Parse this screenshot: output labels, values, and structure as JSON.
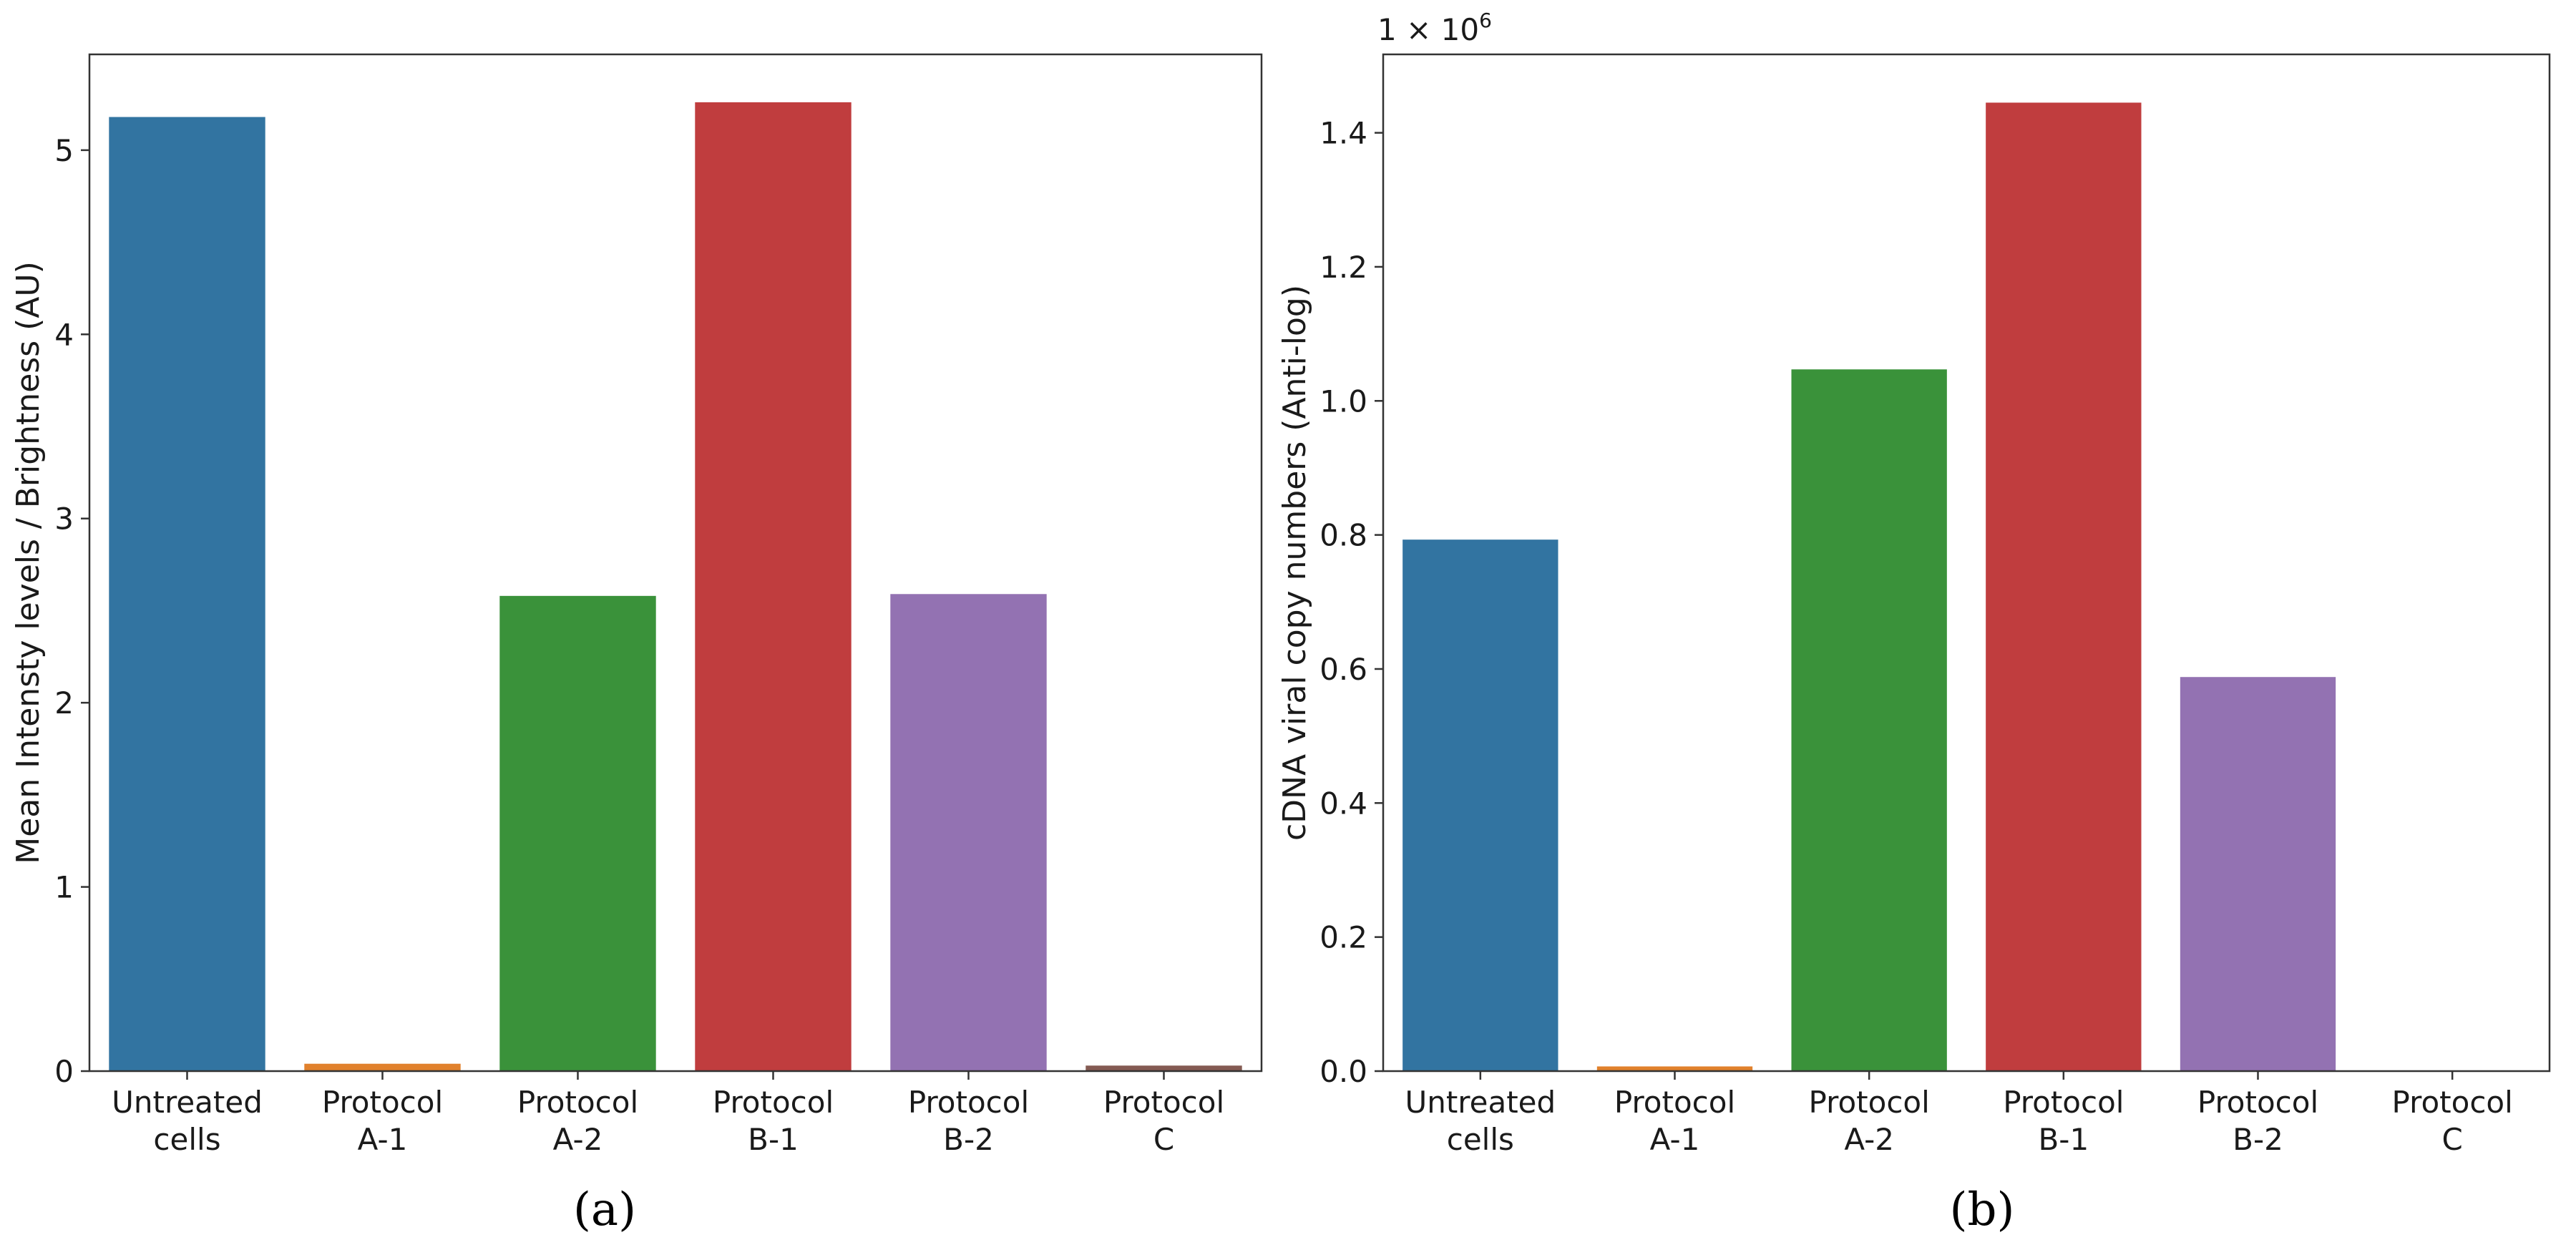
{
  "figure": {
    "label_a": "(a)",
    "label_b": "(b)"
  },
  "chart_data": [
    {
      "type": "bar",
      "panel": "a",
      "title": "",
      "xlabel": "",
      "ylabel": "Mean Intensty levels / Brightness (AU)",
      "categories": [
        [
          "Untreated",
          "cells"
        ],
        [
          "Protocol",
          "A-1"
        ],
        [
          "Protocol",
          "A-2"
        ],
        [
          "Protocol",
          "B-1"
        ],
        [
          "Protocol",
          "B-2"
        ],
        [
          "Protocol",
          "C"
        ]
      ],
      "values": [
        5.18,
        0.04,
        2.58,
        5.26,
        2.59,
        0.03
      ],
      "colors": [
        "#3274a1",
        "#e1812c",
        "#3a923a",
        "#c03d3e",
        "#9372b2",
        "#845b53"
      ],
      "ylim": [
        0,
        5.52
      ],
      "yticks": [
        0,
        1,
        2,
        3,
        4,
        5
      ],
      "ytick_labels": [
        "0",
        "1",
        "2",
        "3",
        "4",
        "5"
      ],
      "scale_label": "",
      "grid": false
    },
    {
      "type": "bar",
      "panel": "b",
      "title": "",
      "xlabel": "",
      "ylabel": "cDNA viral copy numbers (Anti-log)",
      "categories": [
        [
          "Untreated",
          "cells"
        ],
        [
          "Protocol",
          "A-1"
        ],
        [
          "Protocol",
          "A-2"
        ],
        [
          "Protocol",
          "B-1"
        ],
        [
          "Protocol",
          "B-2"
        ],
        [
          "Protocol",
          "C"
        ]
      ],
      "values": [
        0.793,
        0.007,
        1.047,
        1.445,
        0.588,
        0.001
      ],
      "colors": [
        "#3274a1",
        "#e1812c",
        "#3a923a",
        "#c03d3e",
        "#9372b2",
        "#845b53"
      ],
      "ylim": [
        0,
        1.517
      ],
      "yticks": [
        0,
        0.2,
        0.4,
        0.6,
        0.8,
        1.0,
        1.2,
        1.4
      ],
      "ytick_labels": [
        "0.0",
        "0.2",
        "0.4",
        "0.6",
        "0.8",
        "1.0",
        "1.2",
        "1.4"
      ],
      "scale_label": "1 × 10",
      "scale_exponent": "6",
      "grid": false
    }
  ]
}
